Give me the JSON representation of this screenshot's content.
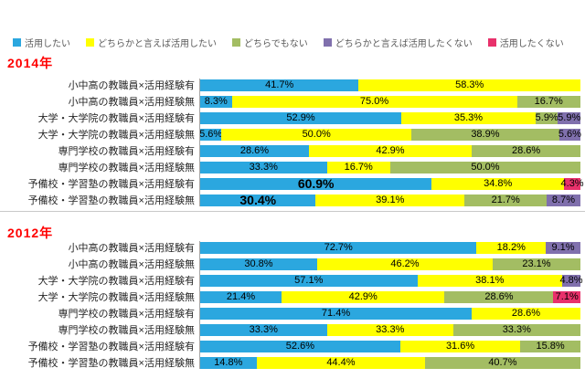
{
  "chart_data": {
    "type": "bar",
    "stacked": true,
    "orientation": "horizontal",
    "xlim": [
      0,
      100
    ],
    "grid": false,
    "legend_position": "top",
    "series": [
      {
        "key": "katsuyou-shitai",
        "name": "活用したい",
        "color": "#2BA7DF"
      },
      {
        "key": "dochiraka-ieba-shitai",
        "name": "どちらかと言えば活用したい",
        "color": "#FFFF00"
      },
      {
        "key": "dochira-demo-nai",
        "name": "どちらでもない",
        "color": "#A3BD63"
      },
      {
        "key": "dochiraka-ieba-shitakunai",
        "name": "どちらかと言えば活用したくない",
        "color": "#8070AD"
      },
      {
        "key": "katsuyou-shitakunai",
        "name": "活用したくない",
        "color": "#E8316B"
      }
    ],
    "sections": [
      {
        "title": "2014年",
        "rows": [
          {
            "category": "小中高の教職員×活用経験有",
            "segments": [
              {
                "series": 0,
                "value": 41.7,
                "label": "41.7%"
              },
              {
                "series": 1,
                "value": 58.3,
                "label": "58.3%"
              }
            ]
          },
          {
            "category": "小中高の教職員×活用経験無",
            "segments": [
              {
                "series": 0,
                "value": 8.3,
                "label": "8.3%"
              },
              {
                "series": 1,
                "value": 75.0,
                "label": "75.0%"
              },
              {
                "series": 2,
                "value": 16.7,
                "label": "16.7%"
              }
            ]
          },
          {
            "category": "大学・大学院の教職員×活用経験有",
            "segments": [
              {
                "series": 0,
                "value": 52.9,
                "label": "52.9%"
              },
              {
                "series": 1,
                "value": 35.3,
                "label": "35.3%"
              },
              {
                "series": 2,
                "value": 5.9,
                "label": "5.9%"
              },
              {
                "series": 3,
                "value": 5.9,
                "label": "5.9%"
              }
            ]
          },
          {
            "category": "大学・大学院の教職員×活用経験無",
            "segments": [
              {
                "series": 0,
                "value": 5.6,
                "label": "5.6%"
              },
              {
                "series": 1,
                "value": 50.0,
                "label": "50.0%"
              },
              {
                "series": 2,
                "value": 38.9,
                "label": "38.9%"
              },
              {
                "series": 3,
                "value": 5.6,
                "label": "5.6%"
              }
            ]
          },
          {
            "category": "専門学校の教職員×活用経験有",
            "segments": [
              {
                "series": 0,
                "value": 28.6,
                "label": "28.6%"
              },
              {
                "series": 1,
                "value": 42.9,
                "label": "42.9%"
              },
              {
                "series": 2,
                "value": 28.6,
                "label": "28.6%"
              }
            ]
          },
          {
            "category": "専門学校の教職員×活用経験無",
            "segments": [
              {
                "series": 0,
                "value": 33.3,
                "label": "33.3%"
              },
              {
                "series": 1,
                "value": 16.7,
                "label": "16.7%"
              },
              {
                "series": 2,
                "value": 50.0,
                "label": "50.0%"
              }
            ]
          },
          {
            "category": "予備校・学習塾の教職員×活用経験有",
            "segments": [
              {
                "series": 0,
                "value": 60.9,
                "label": "60.9%",
                "big": true
              },
              {
                "series": 1,
                "value": 34.8,
                "label": "34.8%"
              },
              {
                "series": 4,
                "value": 4.3,
                "label": "4.3%"
              }
            ]
          },
          {
            "category": "予備校・学習塾の教職員×活用経験無",
            "segments": [
              {
                "series": 0,
                "value": 30.4,
                "label": "30.4%",
                "big": true
              },
              {
                "series": 1,
                "value": 39.1,
                "label": "39.1%"
              },
              {
                "series": 2,
                "value": 21.7,
                "label": "21.7%"
              },
              {
                "series": 3,
                "value": 8.7,
                "label": "8.7%"
              }
            ]
          }
        ]
      },
      {
        "title": "2012年",
        "rows": [
          {
            "category": "小中高の教職員×活用経験有",
            "segments": [
              {
                "series": 0,
                "value": 72.7,
                "label": "72.7%"
              },
              {
                "series": 1,
                "value": 18.2,
                "label": "18.2%"
              },
              {
                "series": 3,
                "value": 9.1,
                "label": "9.1%"
              }
            ]
          },
          {
            "category": "小中高の教職員×活用経験無",
            "segments": [
              {
                "series": 0,
                "value": 30.8,
                "label": "30.8%"
              },
              {
                "series": 1,
                "value": 46.2,
                "label": "46.2%"
              },
              {
                "series": 2,
                "value": 23.1,
                "label": "23.1%"
              }
            ]
          },
          {
            "category": "大学・大学院の教職員×活用経験有",
            "segments": [
              {
                "series": 0,
                "value": 57.1,
                "label": "57.1%"
              },
              {
                "series": 1,
                "value": 38.1,
                "label": "38.1%"
              },
              {
                "series": 3,
                "value": 4.8,
                "label": "4.8%"
              }
            ]
          },
          {
            "category": "大学・大学院の教職員×活用経験無",
            "segments": [
              {
                "series": 0,
                "value": 21.4,
                "label": "21.4%"
              },
              {
                "series": 1,
                "value": 42.9,
                "label": "42.9%"
              },
              {
                "series": 2,
                "value": 28.6,
                "label": "28.6%"
              },
              {
                "series": 4,
                "value": 7.1,
                "label": "7.1%"
              }
            ]
          },
          {
            "category": "専門学校の教職員×活用経験有",
            "segments": [
              {
                "series": 0,
                "value": 71.4,
                "label": "71.4%"
              },
              {
                "series": 1,
                "value": 28.6,
                "label": "28.6%"
              }
            ]
          },
          {
            "category": "専門学校の教職員×活用経験無",
            "segments": [
              {
                "series": 0,
                "value": 33.3,
                "label": "33.3%"
              },
              {
                "series": 1,
                "value": 33.3,
                "label": "33.3%"
              },
              {
                "series": 2,
                "value": 33.3,
                "label": "33.3%"
              }
            ]
          },
          {
            "category": "予備校・学習塾の教職員×活用経験有",
            "segments": [
              {
                "series": 0,
                "value": 52.6,
                "label": "52.6%"
              },
              {
                "series": 1,
                "value": 31.6,
                "label": "31.6%"
              },
              {
                "series": 2,
                "value": 15.8,
                "label": "15.8%"
              }
            ]
          },
          {
            "category": "予備校・学習塾の教職員×活用経験無",
            "segments": [
              {
                "series": 0,
                "value": 14.8,
                "label": "14.8%"
              },
              {
                "series": 1,
                "value": 44.4,
                "label": "44.4%"
              },
              {
                "series": 2,
                "value": 40.7,
                "label": "40.7%"
              }
            ]
          }
        ]
      }
    ]
  },
  "colors": {
    "title_red": "#FF0000",
    "axis_line": "#A6A6A6",
    "divider": "#C9C9C9",
    "legend_text": "#595959"
  }
}
